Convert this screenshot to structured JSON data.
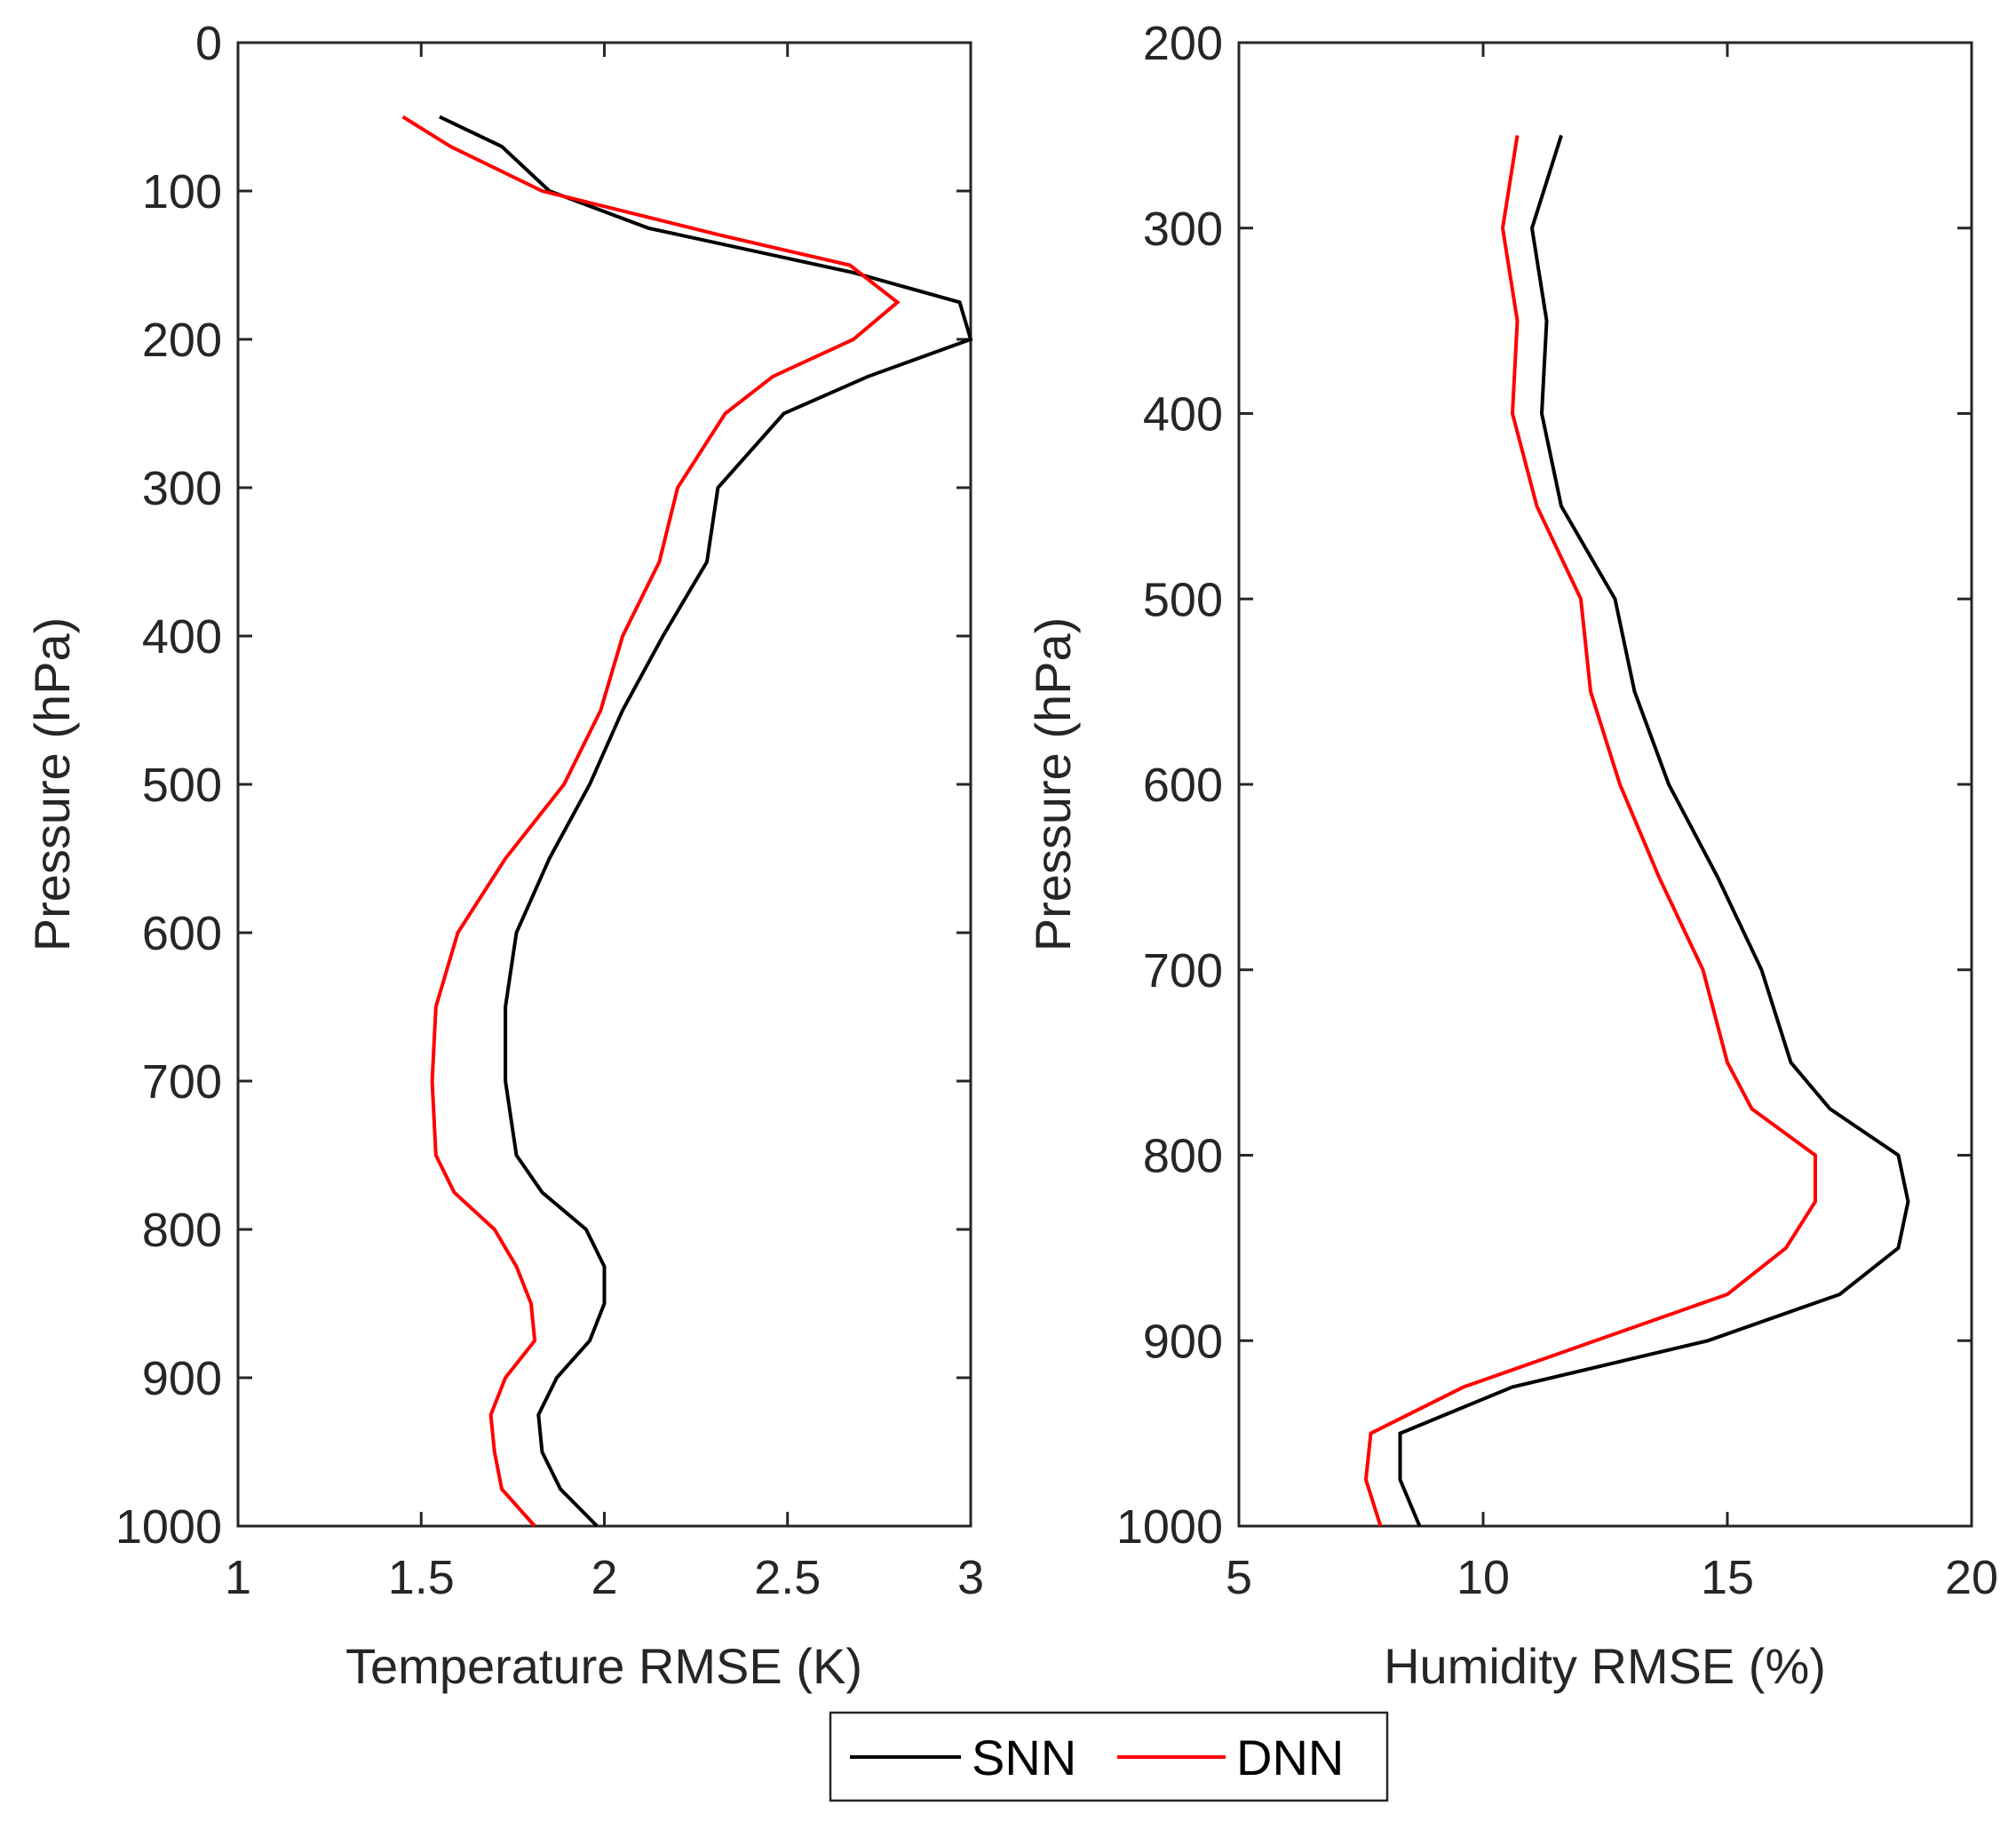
{
  "chart_data": [
    {
      "type": "line",
      "xlabel": "Temperature RMSE (K)",
      "ylabel": "Pressure (hPa)",
      "xlim": [
        1,
        3
      ],
      "ylim": [
        0,
        1000
      ],
      "y_reversed": true,
      "xticks": [
        1,
        1.5,
        2,
        2.5,
        3
      ],
      "xtick_labels": [
        "1",
        "1.5",
        "2",
        "2.5",
        "3"
      ],
      "yticks": [
        0,
        100,
        200,
        300,
        400,
        500,
        600,
        700,
        800,
        900,
        1000
      ],
      "ytick_labels": [
        "0",
        "100",
        "200",
        "300",
        "400",
        "500",
        "600",
        "700",
        "800",
        "900",
        "1000"
      ],
      "series": [
        {
          "name": "SNN",
          "color": "#000000",
          "points": [
            [
              1.55,
              50
            ],
            [
              1.72,
              70
            ],
            [
              1.85,
              100
            ],
            [
              2.12,
              125
            ],
            [
              2.68,
              155
            ],
            [
              2.97,
              175
            ],
            [
              3.0,
              200
            ],
            [
              2.72,
              225
            ],
            [
              2.49,
              250
            ],
            [
              2.31,
              300
            ],
            [
              2.28,
              350
            ],
            [
              2.16,
              400
            ],
            [
              2.05,
              450
            ],
            [
              1.96,
              500
            ],
            [
              1.85,
              550
            ],
            [
              1.76,
              600
            ],
            [
              1.73,
              650
            ],
            [
              1.73,
              700
            ],
            [
              1.76,
              750
            ],
            [
              1.83,
              775
            ],
            [
              1.95,
              800
            ],
            [
              2.0,
              825
            ],
            [
              2.0,
              850
            ],
            [
              1.96,
              875
            ],
            [
              1.87,
              900
            ],
            [
              1.82,
              925
            ],
            [
              1.83,
              950
            ],
            [
              1.88,
              975
            ],
            [
              1.98,
              1000
            ]
          ]
        },
        {
          "name": "DNN",
          "color": "#ff0000",
          "points": [
            [
              1.45,
              50
            ],
            [
              1.58,
              70
            ],
            [
              1.83,
              100
            ],
            [
              2.32,
              130
            ],
            [
              2.67,
              150
            ],
            [
              2.8,
              175
            ],
            [
              2.68,
              200
            ],
            [
              2.46,
              225
            ],
            [
              2.33,
              250
            ],
            [
              2.2,
              300
            ],
            [
              2.15,
              350
            ],
            [
              2.05,
              400
            ],
            [
              1.99,
              450
            ],
            [
              1.89,
              500
            ],
            [
              1.73,
              550
            ],
            [
              1.6,
              600
            ],
            [
              1.54,
              650
            ],
            [
              1.53,
              700
            ],
            [
              1.54,
              750
            ],
            [
              1.59,
              775
            ],
            [
              1.7,
              800
            ],
            [
              1.76,
              825
            ],
            [
              1.8,
              850
            ],
            [
              1.81,
              875
            ],
            [
              1.73,
              900
            ],
            [
              1.69,
              925
            ],
            [
              1.7,
              950
            ],
            [
              1.72,
              975
            ],
            [
              1.81,
              1000
            ]
          ]
        }
      ]
    },
    {
      "type": "line",
      "xlabel": "Humidity RMSE (%)",
      "ylabel": "Pressure (hPa)",
      "xlim": [
        5,
        20
      ],
      "ylim": [
        200,
        1000
      ],
      "y_reversed": true,
      "xticks": [
        5,
        10,
        15,
        20
      ],
      "xtick_labels": [
        "5",
        "10",
        "15",
        "20"
      ],
      "yticks": [
        200,
        300,
        400,
        500,
        600,
        700,
        800,
        900,
        1000
      ],
      "ytick_labels": [
        "200",
        "300",
        "400",
        "500",
        "600",
        "700",
        "800",
        "900",
        "1000"
      ],
      "series": [
        {
          "name": "SNN",
          "color": "#000000",
          "points": [
            [
              11.6,
              250
            ],
            [
              11.0,
              300
            ],
            [
              11.3,
              350
            ],
            [
              11.2,
              400
            ],
            [
              11.6,
              450
            ],
            [
              12.7,
              500
            ],
            [
              13.1,
              550
            ],
            [
              13.8,
              600
            ],
            [
              14.8,
              650
            ],
            [
              15.7,
              700
            ],
            [
              16.3,
              750
            ],
            [
              17.1,
              775
            ],
            [
              18.5,
              800
            ],
            [
              18.7,
              825
            ],
            [
              18.5,
              850
            ],
            [
              17.3,
              875
            ],
            [
              14.6,
              900
            ],
            [
              10.6,
              925
            ],
            [
              8.3,
              950
            ],
            [
              8.3,
              975
            ],
            [
              8.7,
              1000
            ]
          ]
        },
        {
          "name": "DNN",
          "color": "#ff0000",
          "points": [
            [
              10.7,
              250
            ],
            [
              10.4,
              300
            ],
            [
              10.7,
              350
            ],
            [
              10.6,
              400
            ],
            [
              11.1,
              450
            ],
            [
              12.0,
              500
            ],
            [
              12.2,
              550
            ],
            [
              12.8,
              600
            ],
            [
              13.6,
              650
            ],
            [
              14.5,
              700
            ],
            [
              15.0,
              750
            ],
            [
              15.5,
              775
            ],
            [
              16.8,
              800
            ],
            [
              16.8,
              825
            ],
            [
              16.2,
              850
            ],
            [
              15.0,
              875
            ],
            [
              12.3,
              900
            ],
            [
              9.6,
              925
            ],
            [
              7.7,
              950
            ],
            [
              7.6,
              975
            ],
            [
              7.9,
              1000
            ]
          ]
        }
      ]
    }
  ],
  "legend": {
    "placement": "bottom-center",
    "entries": [
      {
        "label": "SNN",
        "color": "#000000"
      },
      {
        "label": "DNN",
        "color": "#ff0000"
      }
    ]
  }
}
